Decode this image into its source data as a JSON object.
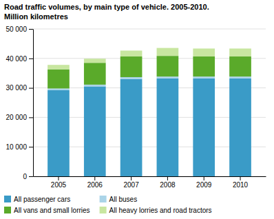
{
  "chart_data": {
    "type": "bar",
    "stacked": true,
    "title": "Road traffic volumes, by main type of vehicle. 2005-2010.",
    "subtitle": "Million kilometres",
    "categories": [
      "2005",
      "2006",
      "2007",
      "2008",
      "2009",
      "2010"
    ],
    "series": [
      {
        "name": "All passenger cars",
        "color": "#3a9bc7",
        "values": [
          29200,
          30500,
          33000,
          33200,
          33200,
          33200
        ]
      },
      {
        "name": "All buses",
        "color": "#aad4e8",
        "values": [
          600,
          600,
          650,
          650,
          650,
          650
        ]
      },
      {
        "name": "All vans and small lorries",
        "color": "#5aaa2a",
        "values": [
          6500,
          7400,
          7000,
          7000,
          6800,
          6800
        ]
      },
      {
        "name": "All heavy lorries and road tractors",
        "color": "#c8e6a0",
        "values": [
          1500,
          1400,
          2000,
          2700,
          2700,
          2700
        ]
      }
    ],
    "ylim": [
      0,
      50000
    ],
    "yticks": [
      0,
      {
        "value": 10000,
        "label": "10 000"
      },
      {
        "value": 20000,
        "label": "20 000"
      },
      {
        "value": 30000,
        "label": "30 000"
      },
      {
        "value": 40000,
        "label": "40 000"
      },
      {
        "value": 50000,
        "label": "50 000"
      }
    ],
    "grid": true,
    "legend": "bottom"
  }
}
